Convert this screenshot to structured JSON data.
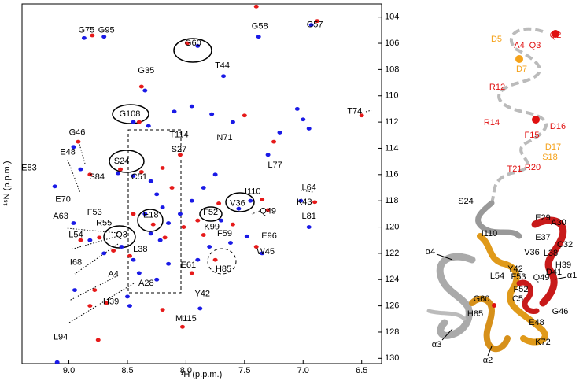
{
  "chart_data": {
    "type": "scatter",
    "xlabel": "¹H (p.p.m.)",
    "ylabel": "¹⁵N (p.p.m.)",
    "xlim": [
      9.4,
      6.33
    ],
    "ylim": [
      103,
      130.4
    ],
    "xticks": [
      {
        "value": 9.0,
        "label": "9.0"
      },
      {
        "value": 8.5,
        "label": "8.5"
      },
      {
        "value": 8.0,
        "label": "8.0"
      },
      {
        "value": 7.5,
        "label": "7.5"
      },
      {
        "value": 7.0,
        "label": "7.0"
      },
      {
        "value": 6.5,
        "label": "6.5"
      }
    ],
    "yticks": [
      104,
      106,
      108,
      110,
      112,
      114,
      116,
      118,
      120,
      122,
      124,
      126,
      128,
      130
    ],
    "series": [
      {
        "color": "#1a1ae6",
        "x": [
          8.87,
          8.7,
          7.38,
          6.93,
          7.9,
          7.68,
          8.35,
          8.45,
          8.32,
          8.1,
          7.95,
          7.78,
          7.6,
          7.2,
          7.05,
          6.95,
          7.3,
          8.96,
          8.9,
          9.12,
          8.58,
          8.45,
          8.3,
          8.25,
          8.2,
          8.35,
          8.3,
          8.22,
          8.15,
          8.05,
          7.95,
          7.85,
          7.75,
          7.7,
          7.55,
          7.45,
          7.48,
          7.35,
          7.02,
          6.95,
          8.96,
          8.82,
          8.7,
          8.55,
          8.45,
          8.4,
          8.25,
          8.15,
          7.9,
          7.8,
          7.62,
          8.5,
          8.48,
          7.88,
          9.1,
          8.95,
          7.0
        ],
        "y": [
          105.6,
          105.5,
          105.5,
          104.6,
          106.2,
          108.5,
          109.6,
          112.0,
          112.3,
          111.2,
          110.8,
          111.4,
          112.0,
          112.8,
          111.0,
          112.5,
          114.5,
          113.9,
          115.6,
          116.9,
          115.9,
          116.1,
          116.5,
          117.5,
          118.5,
          119.0,
          120.5,
          121.0,
          119.7,
          119.0,
          118.0,
          117.0,
          116.0,
          119.5,
          118.6,
          118.0,
          120.7,
          122.0,
          118.0,
          120.0,
          119.7,
          121.0,
          122.0,
          121.5,
          122.5,
          123.5,
          124.0,
          122.8,
          122.5,
          121.5,
          121.2,
          125.3,
          126.0,
          126.2,
          130.3,
          124.8,
          111.8
        ]
      },
      {
        "color": "#e61a1a",
        "x": [
          8.8,
          7.4,
          6.88,
          7.99,
          8.38,
          8.4,
          8.05,
          7.5,
          7.25,
          6.5,
          8.92,
          8.82,
          8.56,
          8.38,
          8.2,
          8.12,
          8.28,
          8.18,
          8.02,
          7.9,
          7.72,
          7.6,
          7.35,
          7.3,
          6.9,
          8.74,
          8.9,
          8.62,
          8.48,
          8.78,
          8.82,
          8.68,
          8.75,
          8.2,
          7.95,
          7.75,
          8.03,
          7.4,
          7.85,
          8.45
        ],
        "y": [
          105.4,
          103.2,
          104.3,
          106.0,
          109.3,
          112.0,
          114.5,
          111.5,
          113.5,
          111.5,
          113.5,
          116.0,
          115.6,
          115.8,
          115.5,
          117.0,
          119.8,
          120.8,
          120.0,
          119.5,
          118.2,
          119.8,
          117.9,
          118.7,
          118.1,
          120.8,
          121.0,
          121.8,
          122.2,
          124.8,
          126.0,
          125.8,
          128.6,
          126.3,
          123.5,
          122.5,
          127.6,
          121.5,
          120.6,
          119.0
        ]
      }
    ],
    "annotations": [
      {
        "text": "G75",
        "x": 8.85,
        "y": 105.0
      },
      {
        "text": "G95",
        "x": 8.68,
        "y": 105.0
      },
      {
        "text": "G58",
        "x": 7.37,
        "y": 104.7
      },
      {
        "text": "G57",
        "x": 6.9,
        "y": 104.6
      },
      {
        "text": "G60",
        "x": 7.94,
        "y": 106.0
      },
      {
        "text": "T44",
        "x": 7.69,
        "y": 107.7
      },
      {
        "text": "G35",
        "x": 8.34,
        "y": 108.1
      },
      {
        "text": "G108",
        "x": 8.48,
        "y": 111.4
      },
      {
        "text": "T74",
        "x": 6.56,
        "y": 111.2
      },
      {
        "text": "T114",
        "x": 8.06,
        "y": 113.0
      },
      {
        "text": "N71",
        "x": 7.67,
        "y": 113.2
      },
      {
        "text": "S27",
        "x": 8.06,
        "y": 114.1
      },
      {
        "text": "G46",
        "x": 8.93,
        "y": 112.8
      },
      {
        "text": "E48",
        "x": 9.01,
        "y": 114.3
      },
      {
        "text": "E83",
        "x": 9.34,
        "y": 115.5
      },
      {
        "text": "S24",
        "x": 8.55,
        "y": 115.0
      },
      {
        "text": "S84",
        "x": 8.76,
        "y": 116.2
      },
      {
        "text": "C51",
        "x": 8.4,
        "y": 116.2
      },
      {
        "text": "L77",
        "x": 7.24,
        "y": 115.3
      },
      {
        "text": "L64",
        "x": 6.95,
        "y": 117.0
      },
      {
        "text": "I110",
        "x": 7.43,
        "y": 117.3
      },
      {
        "text": "K43",
        "x": 6.99,
        "y": 118.1
      },
      {
        "text": "E70",
        "x": 9.05,
        "y": 117.9
      },
      {
        "text": "F52",
        "x": 7.79,
        "y": 118.9
      },
      {
        "text": "V36",
        "x": 7.56,
        "y": 118.2
      },
      {
        "text": "Q49",
        "x": 7.3,
        "y": 118.8
      },
      {
        "text": "R55",
        "x": 8.7,
        "y": 119.7
      },
      {
        "text": "F53",
        "x": 8.78,
        "y": 118.9
      },
      {
        "text": "E18",
        "x": 8.3,
        "y": 119.1
      },
      {
        "text": "L81",
        "x": 6.95,
        "y": 119.2
      },
      {
        "text": "A63",
        "x": 9.07,
        "y": 119.2
      },
      {
        "text": "K99",
        "x": 7.78,
        "y": 120.0
      },
      {
        "text": "L54",
        "x": 8.94,
        "y": 120.6
      },
      {
        "text": "F59",
        "x": 7.67,
        "y": 120.5
      },
      {
        "text": "E96",
        "x": 7.29,
        "y": 120.7
      },
      {
        "text": "Q3",
        "x": 8.55,
        "y": 120.6
      },
      {
        "text": "L38",
        "x": 8.39,
        "y": 121.7
      },
      {
        "text": "W45",
        "x": 7.32,
        "y": 121.9
      },
      {
        "text": "I68",
        "x": 8.94,
        "y": 122.7
      },
      {
        "text": "E61",
        "x": 7.98,
        "y": 122.9
      },
      {
        "text": "H85",
        "x": 7.68,
        "y": 123.2
      },
      {
        "text": "A4",
        "x": 8.62,
        "y": 123.6
      },
      {
        "text": "A28",
        "x": 8.34,
        "y": 124.3
      },
      {
        "text": "Y42",
        "x": 7.86,
        "y": 125.1
      },
      {
        "text": "H39",
        "x": 8.64,
        "y": 125.7
      },
      {
        "text": "M115",
        "x": 8.0,
        "y": 127.0
      },
      {
        "text": "L94",
        "x": 9.07,
        "y": 128.4
      }
    ]
  },
  "structure": {
    "labels": [
      "Q2",
      "A4",
      "Q3",
      "D5",
      "D7",
      "R12",
      "R14",
      "D16",
      "F15",
      "D17",
      "S18",
      "R20",
      "T21",
      "S24",
      "E29",
      "A30",
      "I110",
      "E37",
      "C32",
      "V36",
      "L38",
      "H39",
      "Y42",
      "D41",
      "α4",
      "L54",
      "F53",
      "Q49",
      "α1",
      "F52",
      "C5",
      "G60",
      "G46",
      "H85",
      "E48",
      "α3",
      "K72",
      "α2"
    ]
  }
}
